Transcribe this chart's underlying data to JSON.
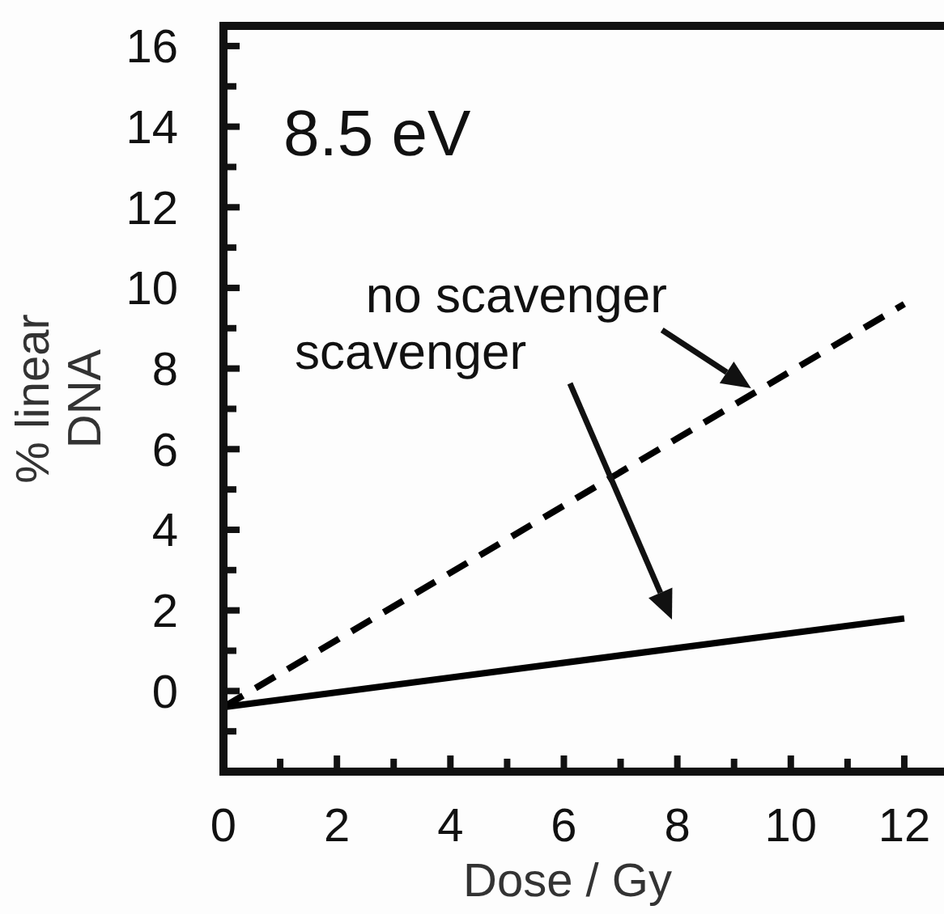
{
  "chart_data": {
    "type": "line",
    "xlabel": "Dose / Gy",
    "ylabel": "% linear\nDNA",
    "annotations": [
      "8.5 eV",
      {
        "text": "no scavenger",
        "x": 9.3,
        "y": 7.35
      },
      "scavenger"
    ],
    "x": [
      0,
      12
    ],
    "series": [
      {
        "color": "#000000",
        "values": [
          -0.4,
          9.6
        ],
        "line_style": "dashed"
      },
      {
        "color": "#000000",
        "values": [
          -0.4,
          1.8
        ],
        "line_style": "solid"
      }
    ],
    "xlim": [
      0,
      12.7
    ],
    "xticks": [
      0,
      {
        "value": 1,
        "label": null
      },
      2,
      {
        "value": 3,
        "label": null
      },
      4,
      {
        "value": 5,
        "label": null
      },
      6,
      {
        "value": 7,
        "label": null
      },
      8,
      {
        "value": 9,
        "label": null
      },
      10,
      {
        "value": 11,
        "label": null
      },
      12
    ],
    "ylim": [
      -2,
      16.5
    ],
    "yticks": [
      {
        "value": -1,
        "label": null
      },
      0,
      {
        "value": 1,
        "label": null
      },
      2,
      {
        "value": 3,
        "label": null
      },
      4,
      {
        "value": 5,
        "label": null
      },
      6,
      {
        "value": 7,
        "label": null
      },
      8,
      {
        "value": 9,
        "label": null
      },
      10,
      {
        "value": 11,
        "label": null
      },
      12,
      {
        "value": 13,
        "label": null
      },
      14,
      {
        "value": 15,
        "label": null
      },
      16
    ],
    "grid": false,
    "marker": "none"
  }
}
